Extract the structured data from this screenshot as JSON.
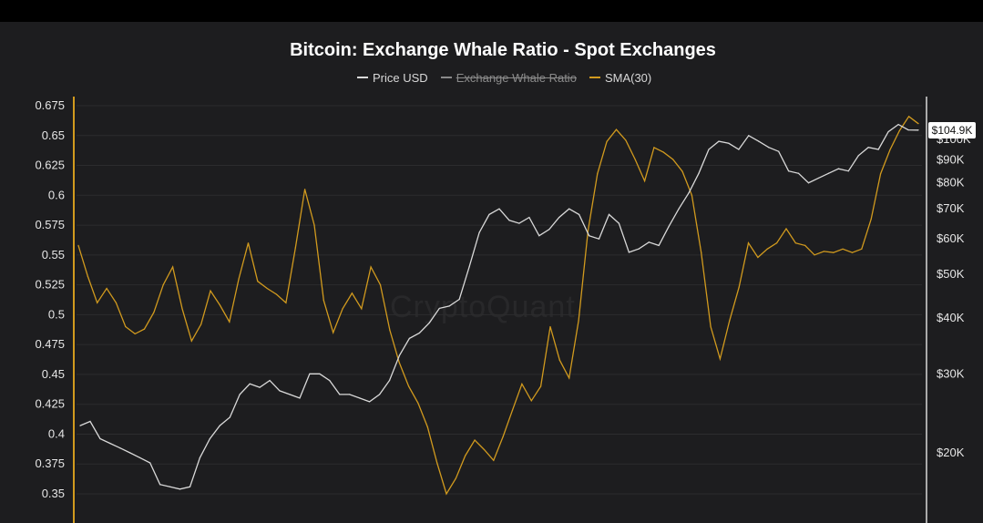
{
  "chart_data": {
    "type": "line",
    "title": "Bitcoin: Exchange Whale Ratio - Spot Exchanges",
    "watermark": "CryptoQuant",
    "legend_position": "top-center",
    "grid": true,
    "legend": [
      {
        "name": "Price USD",
        "color": "#d9d9d9",
        "visible": true
      },
      {
        "name": "Exchange Whale Ratio",
        "color": "#9a9a9a",
        "visible": false
      },
      {
        "name": "SMA(30)",
        "color": "#d19a1e",
        "visible": true
      }
    ],
    "y_left": {
      "ylim": [
        0.3375,
        0.6875
      ],
      "ticks": [
        "0.675",
        "0.65",
        "0.625",
        "0.6",
        "0.575",
        "0.55",
        "0.525",
        "0.5",
        "0.475",
        "0.45",
        "0.425",
        "0.4",
        "0.375",
        "0.35"
      ]
    },
    "y_right": {
      "scale": "log",
      "ylim": [
        15000,
        118000
      ],
      "ticks": [
        {
          "label": "$100K",
          "value": 100000
        },
        {
          "label": "$90K",
          "value": 90000
        },
        {
          "label": "$80K",
          "value": 80000
        },
        {
          "label": "$70K",
          "value": 70000
        },
        {
          "label": "$60K",
          "value": 60000
        },
        {
          "label": "$50K",
          "value": 50000
        },
        {
          "label": "$40K",
          "value": 40000
        },
        {
          "label": "$30K",
          "value": 30000
        },
        {
          "label": "$20K",
          "value": 20000
        }
      ]
    },
    "last_price_label": "$104.9K",
    "x_points": 100,
    "series": [
      {
        "name": "SMA(30)",
        "axis": "left",
        "color": "#d19a1e",
        "values": [
          0.558,
          0.532,
          0.51,
          0.522,
          0.51,
          0.49,
          0.484,
          0.488,
          0.502,
          0.525,
          0.54,
          0.505,
          0.478,
          0.492,
          0.52,
          0.508,
          0.494,
          0.53,
          0.56,
          0.528,
          0.522,
          0.517,
          0.51,
          0.556,
          0.605,
          0.575,
          0.512,
          0.485,
          0.505,
          0.518,
          0.505,
          0.54,
          0.525,
          0.487,
          0.46,
          0.44,
          0.426,
          0.406,
          0.376,
          0.35,
          0.363,
          0.382,
          0.395,
          0.387,
          0.378,
          0.398,
          0.42,
          0.442,
          0.428,
          0.44,
          0.49,
          0.462,
          0.447,
          0.495,
          0.57,
          0.618,
          0.645,
          0.655,
          0.646,
          0.63,
          0.612,
          0.64,
          0.636,
          0.63,
          0.62,
          0.6,
          0.552,
          0.49,
          0.463,
          0.495,
          0.523,
          0.56,
          0.548,
          0.555,
          0.56,
          0.572,
          0.56,
          0.558,
          0.55,
          0.553,
          0.552,
          0.555,
          0.552,
          0.555,
          0.58,
          0.618,
          0.638,
          0.654,
          0.666,
          0.66
        ],
        "x_start": 10
      },
      {
        "name": "Price USD",
        "axis": "right",
        "color": "#d9d9d9",
        "values": [
          23000,
          23500,
          21500,
          21000,
          20500,
          20000,
          19500,
          19000,
          17000,
          16800,
          16600,
          16800,
          19500,
          21500,
          23000,
          24000,
          27000,
          28500,
          28000,
          29000,
          27500,
          27000,
          26500,
          30000,
          30000,
          29000,
          27000,
          27000,
          26500,
          26000,
          27000,
          29000,
          33000,
          36000,
          37000,
          39000,
          42000,
          42500,
          44000,
          52000,
          62000,
          68000,
          70000,
          66000,
          65000,
          67000,
          61000,
          63000,
          67000,
          70000,
          68000,
          61000,
          60000,
          68000,
          65000,
          56000,
          57000,
          59000,
          58000,
          64000,
          70000,
          76000,
          84000,
          95000,
          99000,
          98000,
          95000,
          102000,
          99000,
          96000,
          94000,
          85000,
          84000,
          80000,
          82000,
          84000,
          86000,
          85000,
          92000,
          96000,
          95000,
          104000,
          108000,
          105000,
          104900
        ],
        "x_start": 10,
        "x_step": 1.0588
      }
    ]
  }
}
